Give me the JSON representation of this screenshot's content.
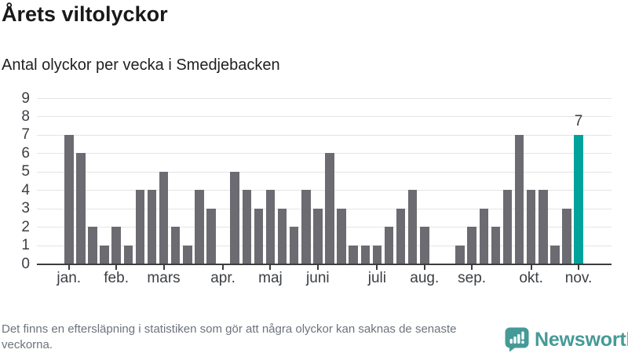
{
  "header": {
    "title": "Årets viltolyckor",
    "subtitle": "Antal olyckor per vecka i Smedjebacken"
  },
  "chart_data": {
    "type": "bar",
    "title": "Årets viltolyckor",
    "subtitle": "Antal olyckor per vecka i Smedjebacken",
    "x_unit": "vecka (januari–november)",
    "values": [
      7,
      6,
      2,
      1,
      2,
      1,
      4,
      4,
      5,
      2,
      1,
      4,
      3,
      0,
      5,
      4,
      3,
      4,
      3,
      2,
      4,
      3,
      6,
      3,
      1,
      1,
      1,
      2,
      3,
      4,
      2,
      0,
      0,
      1,
      2,
      3,
      2,
      4,
      7,
      4,
      4,
      1,
      3,
      7
    ],
    "highlight": {
      "index": 43,
      "label": "7",
      "value": 7
    },
    "x_ticks": [
      {
        "label": "jan.",
        "week_index": 0
      },
      {
        "label": "feb.",
        "week_index": 4
      },
      {
        "label": "mars",
        "week_index": 8
      },
      {
        "label": "apr.",
        "week_index": 13
      },
      {
        "label": "maj",
        "week_index": 17
      },
      {
        "label": "juni",
        "week_index": 21
      },
      {
        "label": "juli",
        "week_index": 26
      },
      {
        "label": "aug.",
        "week_index": 30
      },
      {
        "label": "sep.",
        "week_index": 34
      },
      {
        "label": "okt.",
        "week_index": 39
      },
      {
        "label": "nov.",
        "week_index": 43
      }
    ],
    "y_ticks": [
      0,
      1,
      2,
      3,
      4,
      5,
      6,
      7,
      8,
      9
    ],
    "ylim": [
      0,
      9
    ],
    "grid": true,
    "legend": false,
    "colors": {
      "bar": "#6b6b71",
      "highlight": "#00a39c",
      "grid": "#e4e4e4",
      "axis": "#3d3d3d",
      "tick_text": "#3b3e43"
    }
  },
  "footer": {
    "note": "Det finns en eftersläpning i statistiken som gör att några olyckor kan saknas de senaste veckorna.",
    "brand": "Newsworthy",
    "brand_color": "#459a97"
  }
}
